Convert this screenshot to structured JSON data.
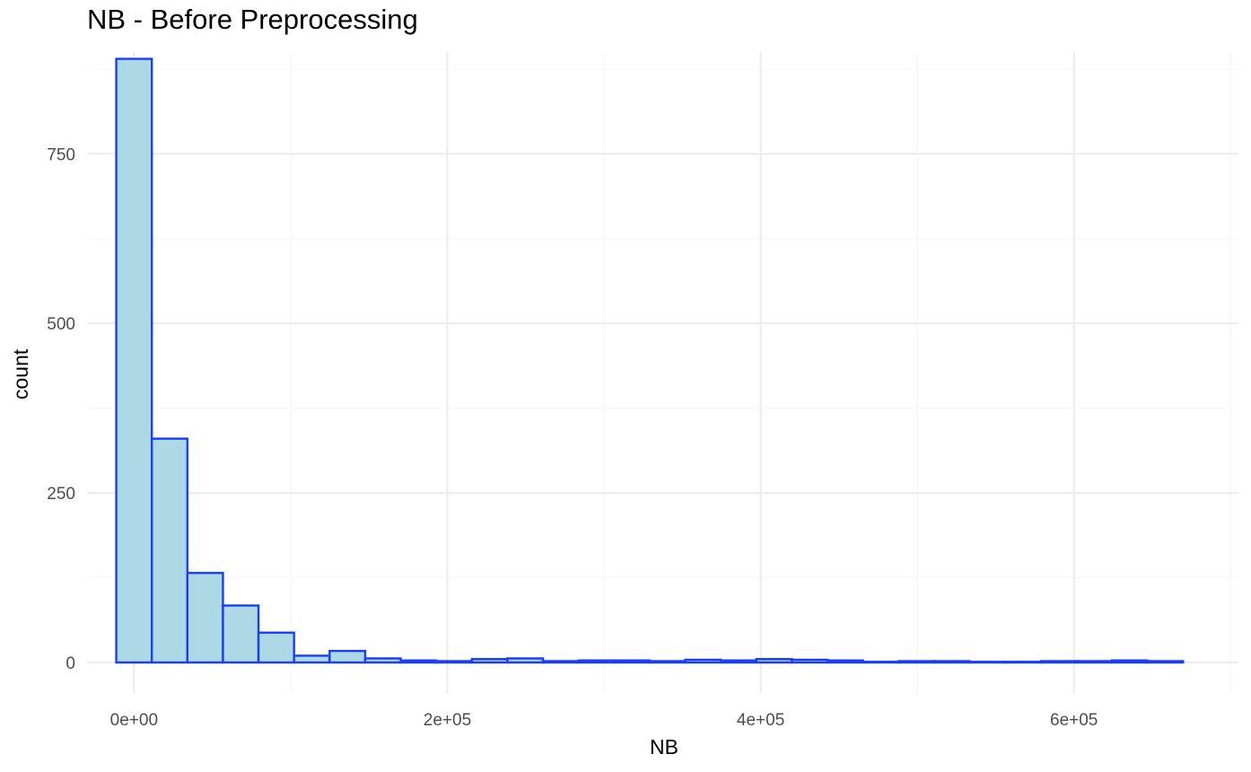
{
  "chart_data": {
    "type": "bar",
    "title": "NB - Before Preprocessing",
    "xlabel": "NB",
    "ylabel": "count",
    "xlim": [
      -30000,
      705000
    ],
    "ylim": [
      -45,
      900
    ],
    "bin_width": 22700,
    "x_ticks": [
      0,
      200000,
      400000,
      600000
    ],
    "x_tick_labels": [
      "0e+00",
      "2e+05",
      "4e+05",
      "6e+05"
    ],
    "y_ticks": [
      0,
      250,
      500,
      750
    ],
    "y_tick_labels": [
      "0",
      "250",
      "500",
      "750"
    ],
    "bins": [
      {
        "x": 0,
        "count": 890
      },
      {
        "x": 22700,
        "count": 330
      },
      {
        "x": 45400,
        "count": 132
      },
      {
        "x": 68100,
        "count": 84
      },
      {
        "x": 90800,
        "count": 44
      },
      {
        "x": 113500,
        "count": 10
      },
      {
        "x": 136200,
        "count": 17
      },
      {
        "x": 158900,
        "count": 6
      },
      {
        "x": 181600,
        "count": 3
      },
      {
        "x": 204300,
        "count": 2
      },
      {
        "x": 227000,
        "count": 5
      },
      {
        "x": 249700,
        "count": 6
      },
      {
        "x": 272400,
        "count": 2
      },
      {
        "x": 295100,
        "count": 3
      },
      {
        "x": 317800,
        "count": 3
      },
      {
        "x": 340500,
        "count": 2
      },
      {
        "x": 363200,
        "count": 4
      },
      {
        "x": 385900,
        "count": 3
      },
      {
        "x": 408600,
        "count": 5
      },
      {
        "x": 431300,
        "count": 4
      },
      {
        "x": 454000,
        "count": 3
      },
      {
        "x": 476700,
        "count": 1
      },
      {
        "x": 499400,
        "count": 2
      },
      {
        "x": 522100,
        "count": 2
      },
      {
        "x": 544800,
        "count": 1
      },
      {
        "x": 567500,
        "count": 1
      },
      {
        "x": 590200,
        "count": 2
      },
      {
        "x": 612900,
        "count": 2
      },
      {
        "x": 635600,
        "count": 3
      },
      {
        "x": 658300,
        "count": 2
      }
    ],
    "grid": true,
    "colors": {
      "fill": "#add8e6",
      "outline": "#1a3cff",
      "grid_major": "#ebebeb",
      "grid_minor": "#f5f5f5"
    }
  }
}
